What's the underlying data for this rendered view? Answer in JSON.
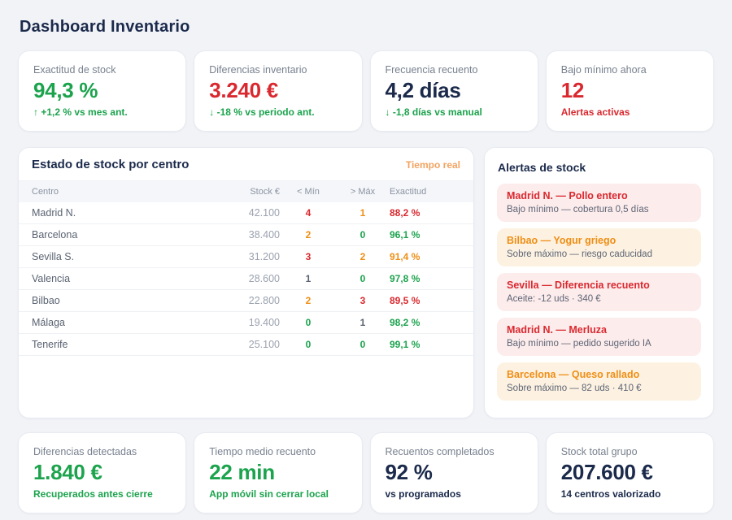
{
  "colors": {
    "green": "#1ca34d",
    "red": "#d9292f",
    "orange": "#ef8e15",
    "navy": "#1b2a4b",
    "gray": "#5a6372",
    "muted": "#78818f",
    "badge_orange": "#f2a360",
    "text_secondary": "#5d6575",
    "alert_red_bg": "#fdecec",
    "alert_orange_bg": "#fdf2e2",
    "page_bg": "#f1f3f7",
    "card_border": "#e7eaf0",
    "table_header_bg": "#f4f6f9",
    "row_line": "#eef1f5",
    "stock_text": "#9aa1ae"
  },
  "header": {
    "title": "Dashboard Inventario"
  },
  "kpis": [
    {
      "label": "Exactitud de stock",
      "value": "94,3 %",
      "value_color": "green",
      "sub": "↑ +1,2 % vs mes ant.",
      "sub_color": "green"
    },
    {
      "label": "Diferencias inventario",
      "value": "3.240 €",
      "value_color": "red",
      "sub": "↓ -18 % vs periodo ant.",
      "sub_color": "green"
    },
    {
      "label": "Frecuencia recuento",
      "value": "4,2 días",
      "value_color": "navy",
      "sub": "↓ -1,8 días vs manual",
      "sub_color": "green"
    },
    {
      "label": "Bajo mínimo ahora",
      "value": "12",
      "value_color": "red",
      "sub": "Alertas activas",
      "sub_color": "red"
    }
  ],
  "stock_table": {
    "title": "Estado de stock por centro",
    "badge": "Tiempo real",
    "columns": [
      "Centro",
      "Stock €",
      "< Mín",
      "> Máx",
      "Exactitud"
    ],
    "rows": [
      {
        "centro": "Madrid N.",
        "stock": "42.100",
        "min": "4",
        "min_color": "red",
        "max": "1",
        "max_color": "orange",
        "exactitud": "88,2 %",
        "exactitud_color": "red"
      },
      {
        "centro": "Barcelona",
        "stock": "38.400",
        "min": "2",
        "min_color": "orange",
        "max": "0",
        "max_color": "green",
        "exactitud": "96,1 %",
        "exactitud_color": "green"
      },
      {
        "centro": "Sevilla S.",
        "stock": "31.200",
        "min": "3",
        "min_color": "red",
        "max": "2",
        "max_color": "orange",
        "exactitud": "91,4 %",
        "exactitud_color": "orange"
      },
      {
        "centro": "Valencia",
        "stock": "28.600",
        "min": "1",
        "min_color": "gray",
        "max": "0",
        "max_color": "green",
        "exactitud": "97,8 %",
        "exactitud_color": "green"
      },
      {
        "centro": "Bilbao",
        "stock": "22.800",
        "min": "2",
        "min_color": "orange",
        "max": "3",
        "max_color": "red",
        "exactitud": "89,5 %",
        "exactitud_color": "red"
      },
      {
        "centro": "Málaga",
        "stock": "19.400",
        "min": "0",
        "min_color": "green",
        "max": "1",
        "max_color": "gray",
        "exactitud": "98,2 %",
        "exactitud_color": "green"
      },
      {
        "centro": "Tenerife",
        "stock": "25.100",
        "min": "0",
        "min_color": "green",
        "max": "0",
        "max_color": "green",
        "exactitud": "99,1 %",
        "exactitud_color": "green"
      }
    ]
  },
  "alerts": {
    "title": "Alertas de stock",
    "items": [
      {
        "title": "Madrid N. — Pollo entero",
        "desc": "Bajo mínimo — cobertura 0,5 días",
        "severity": "red"
      },
      {
        "title": "Bilbao — Yogur griego",
        "desc": "Sobre máximo — riesgo caducidad",
        "severity": "orange"
      },
      {
        "title": "Sevilla — Diferencia recuento",
        "desc": "Aceite: -12 uds · 340 €",
        "severity": "red"
      },
      {
        "title": "Madrid N. — Merluza",
        "desc": "Bajo mínimo — pedido sugerido IA",
        "severity": "red"
      },
      {
        "title": "Barcelona — Queso rallado",
        "desc": "Sobre máximo — 82 uds · 410 €",
        "severity": "orange"
      }
    ]
  },
  "footer_kpis": [
    {
      "label": "Diferencias detectadas",
      "value": "1.840 €",
      "value_color": "green",
      "sub": "Recuperados antes cierre",
      "sub_color": "green"
    },
    {
      "label": "Tiempo medio recuento",
      "value": "22 min",
      "value_color": "green",
      "sub": "App móvil sin cerrar local",
      "sub_color": "green"
    },
    {
      "label": "Recuentos completados",
      "value": "92 %",
      "value_color": "navy",
      "sub": "vs programados",
      "sub_color": "navy"
    },
    {
      "label": "Stock total grupo",
      "value": "207.600 €",
      "value_color": "navy",
      "sub": "14 centros valorizado",
      "sub_color": "navy"
    }
  ]
}
